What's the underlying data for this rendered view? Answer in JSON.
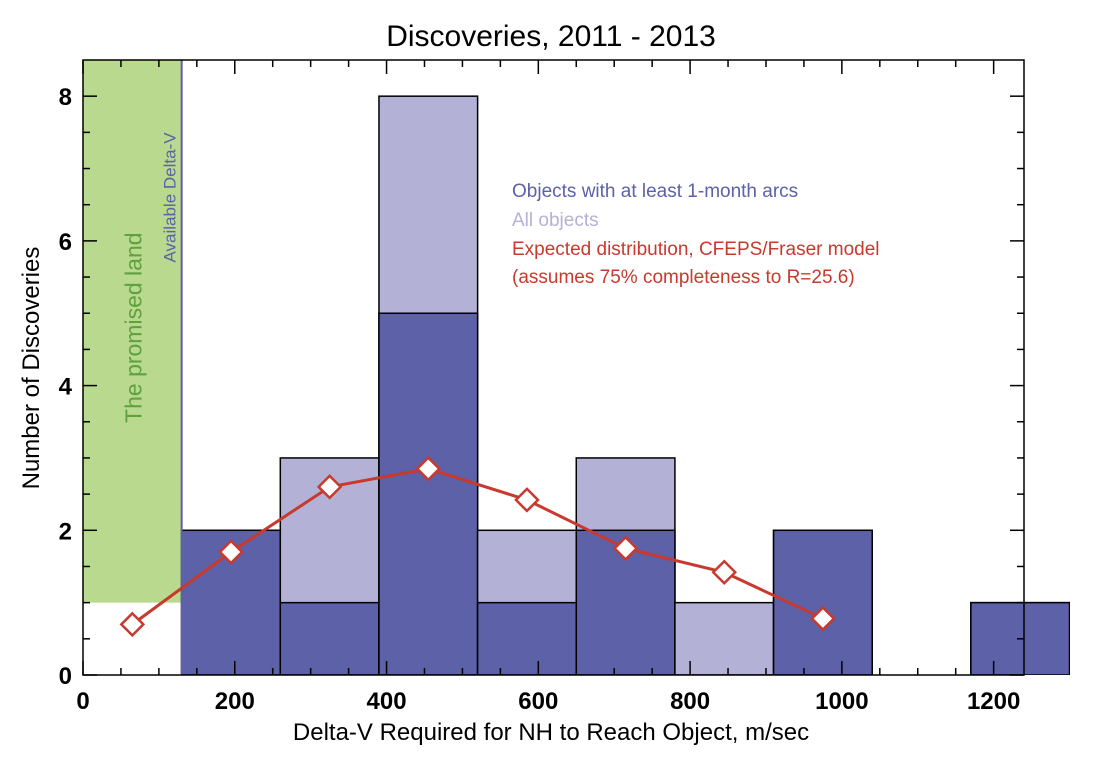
{
  "chart_data": {
    "type": "bar",
    "title": "Discoveries, 2011 - 2013",
    "xlabel": "Delta-V Required for NH to Reach Object, m/sec",
    "ylabel": "Number of Discoveries",
    "xlim": [
      0,
      1240
    ],
    "ylim": [
      0,
      8.5
    ],
    "xticks": [
      0,
      200,
      400,
      600,
      800,
      1000,
      1200
    ],
    "xtick_labels": [
      "0",
      "200",
      "400",
      "600",
      "800",
      "1000",
      "1200"
    ],
    "yticks": [
      0,
      2,
      4,
      6,
      8
    ],
    "ytick_labels": [
      "0",
      "2",
      "4",
      "6",
      "8"
    ],
    "bin_edges": [
      130,
      260,
      390,
      520,
      650,
      780,
      910,
      1040,
      1170,
      1300
    ],
    "series": [
      {
        "name": "All objects",
        "color": "#b3b2d6",
        "values": [
          2,
          3,
          8,
          2,
          3,
          1,
          2,
          0,
          1
        ]
      },
      {
        "name": "Objects with at least 1-month arcs",
        "color": "#5c61a8",
        "values": [
          2,
          1,
          5,
          1,
          2,
          0,
          2,
          0,
          1
        ]
      },
      {
        "name": "Expected distribution, CFEPS/Fraser model",
        "name_line2": " (assumes 75% completeness to R=25.6)",
        "color": "#c8392e",
        "type": "line",
        "x": [
          65,
          195,
          325,
          455,
          585,
          715,
          845,
          975
        ],
        "values": [
          0.7,
          1.7,
          2.6,
          2.85,
          2.42,
          1.75,
          1.42,
          0.78
        ]
      }
    ],
    "annotations": {
      "shaded_region": {
        "label": "The promised land",
        "x_range": [
          0,
          130
        ],
        "y_range": [
          1,
          8.5
        ],
        "color": "#b9d98e",
        "text_color": "#5fa040"
      },
      "vertical_line": {
        "label": "Available Delta-V",
        "x": 130,
        "color": "#5c61a8"
      }
    },
    "legend_position": "top-right",
    "grid": false
  }
}
